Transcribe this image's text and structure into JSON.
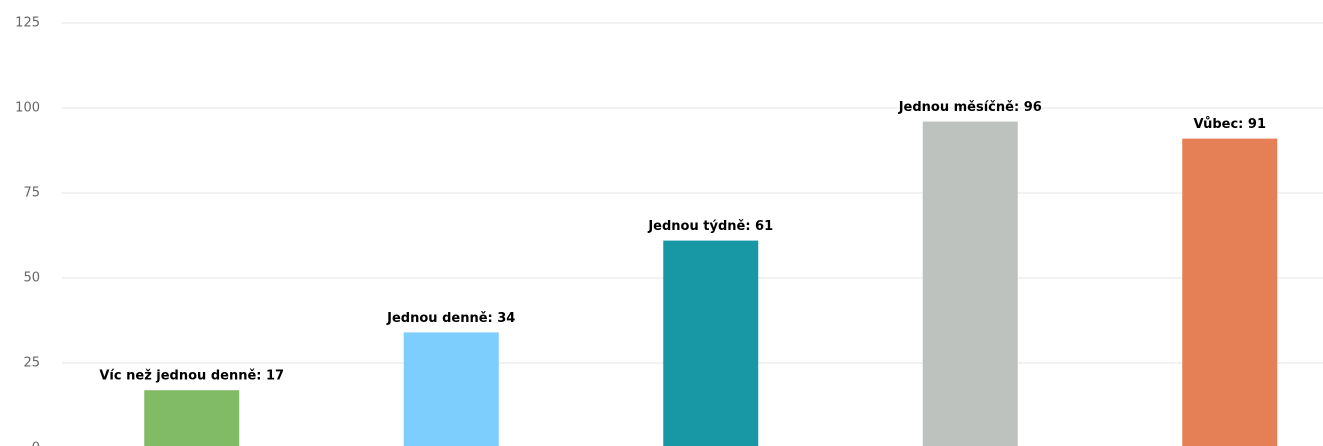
{
  "chart_data": {
    "type": "bar",
    "values": [
      17,
      34,
      61,
      96,
      91
    ],
    "value_labels": [
      "Víc než jednou denně: 17",
      "Jednou denně: 34",
      "Jednou týdně: 61",
      "Jednou měsíčně: 96",
      "Vůbec: 91"
    ],
    "colors": [
      "#82bb65",
      "#7ecefd",
      "#1897a4",
      "#bec2be",
      "#e57f55"
    ],
    "ylim": [
      0,
      125
    ],
    "yticks": [
      0,
      25,
      50,
      75,
      100,
      125
    ],
    "grid": true
  }
}
